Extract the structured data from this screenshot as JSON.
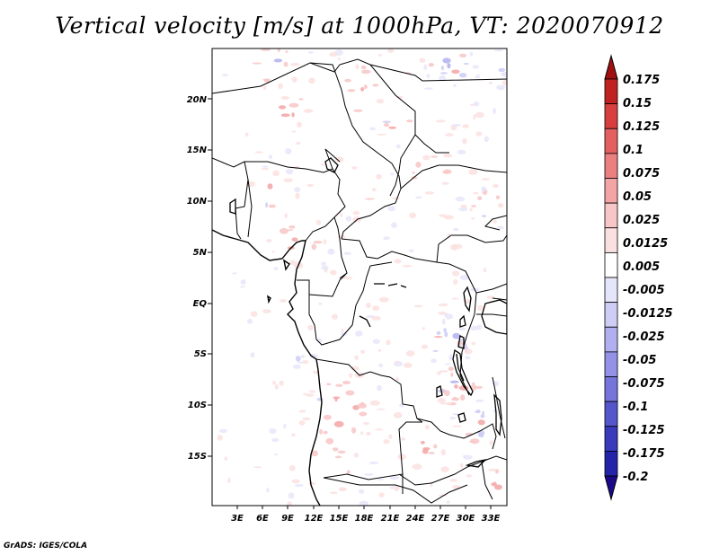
{
  "title": "Vertical velocity [m/s] at 1000hPa, VT: 2020070912",
  "credit": "GrADS: IGES/COLA",
  "map": {
    "lat_labels": [
      "20N",
      "15N",
      "10N",
      "5N",
      "EQ",
      "5S",
      "10S",
      "15S"
    ],
    "lon_labels": [
      "3E",
      "6E",
      "9E",
      "12E",
      "15E",
      "18E",
      "21E",
      "24E",
      "27E",
      "30E",
      "33E"
    ]
  },
  "colorbar": {
    "levels": [
      "0.175",
      "0.15",
      "0.125",
      "0.1",
      "0.075",
      "0.05",
      "0.025",
      "0.0125",
      "0.005",
      "-0.005",
      "-0.0125",
      "-0.025",
      "-0.05",
      "-0.075",
      "-0.1",
      "-0.125",
      "-0.175",
      "-0.2"
    ],
    "colors": [
      "#a01010",
      "#c02222",
      "#d84040",
      "#e46060",
      "#ec8080",
      "#f3a5a5",
      "#f8c6c6",
      "#fbe0e0",
      "#ffffff",
      "#e6e6fa",
      "#cdcdf5",
      "#b0b0f0",
      "#9292e6",
      "#7575dc",
      "#5656cc",
      "#3a3abd",
      "#2424aa",
      "#120f8c"
    ],
    "top_tip_color": "#a01010",
    "bottom_tip_color": "#1a0a8a"
  }
}
